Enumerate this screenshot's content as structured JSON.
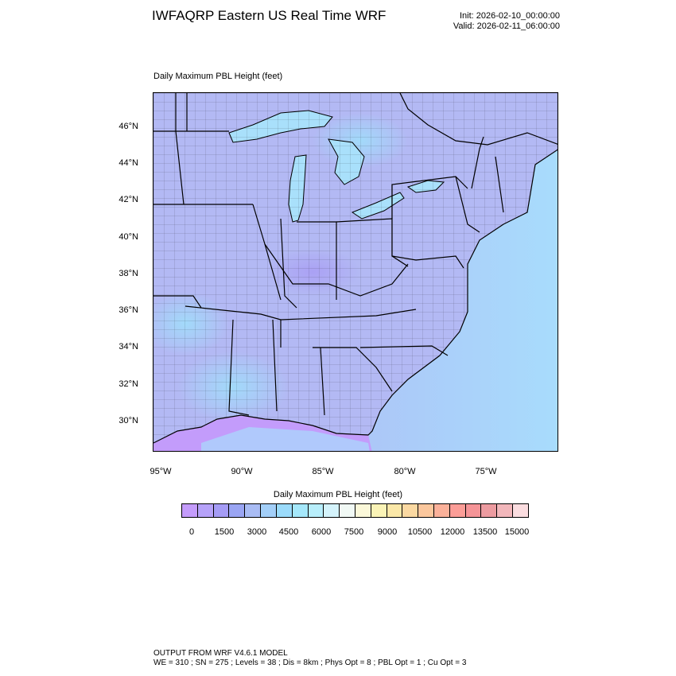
{
  "header": {
    "title": "IWFAQRP Eastern US Real Time WRF",
    "init": "Init: 2026-02-10_00:00:00",
    "valid": "Valid: 2026-02-11_06:00:00"
  },
  "map": {
    "subtitle": "Daily Maximum PBL Height   (feet)",
    "lat_labels": [
      "46°N",
      "44°N",
      "42°N",
      "40°N",
      "38°N",
      "36°N",
      "34°N",
      "32°N",
      "30°N"
    ],
    "lon_labels": [
      "95°W",
      "90°W",
      "85°W",
      "80°W",
      "75°W"
    ],
    "colors": {
      "land_base": "#b3b9f4",
      "ocean_light": "#a6e6ff",
      "ocean_purple": "#c497ff",
      "great_lakes": "#a9e0fb",
      "boundary": "#000000"
    }
  },
  "colorbar": {
    "title": "Daily Maximum PBL Height  (feet)",
    "tick_labels": [
      "0",
      "1500",
      "3000",
      "4500",
      "6000",
      "7500",
      "9000",
      "10500",
      "12000",
      "13500",
      "15000"
    ],
    "colors": [
      "#c49cfb",
      "#b6a2f9",
      "#a59cf6",
      "#9aa5f3",
      "#a9bcf4",
      "#a3cff8",
      "#9bdbfb",
      "#a5e8fb",
      "#b8eefb",
      "#d4f3fb",
      "#f1f9f5",
      "#fbf8d9",
      "#faf3b6",
      "#fbe8a8",
      "#fbd9a2",
      "#fbc79d",
      "#fbb19a",
      "#fb9d97",
      "#f59497",
      "#ec9ba0",
      "#f2b7bb",
      "#fbdde0"
    ]
  },
  "footer": {
    "line1": "OUTPUT FROM WRF V4.6.1 MODEL",
    "line2": "WE = 310 ; SN = 275 ; Levels = 38 ; Dis = 8km ; Phys Opt = 8 ; PBL Opt = 1 ; Cu Opt = 3"
  }
}
